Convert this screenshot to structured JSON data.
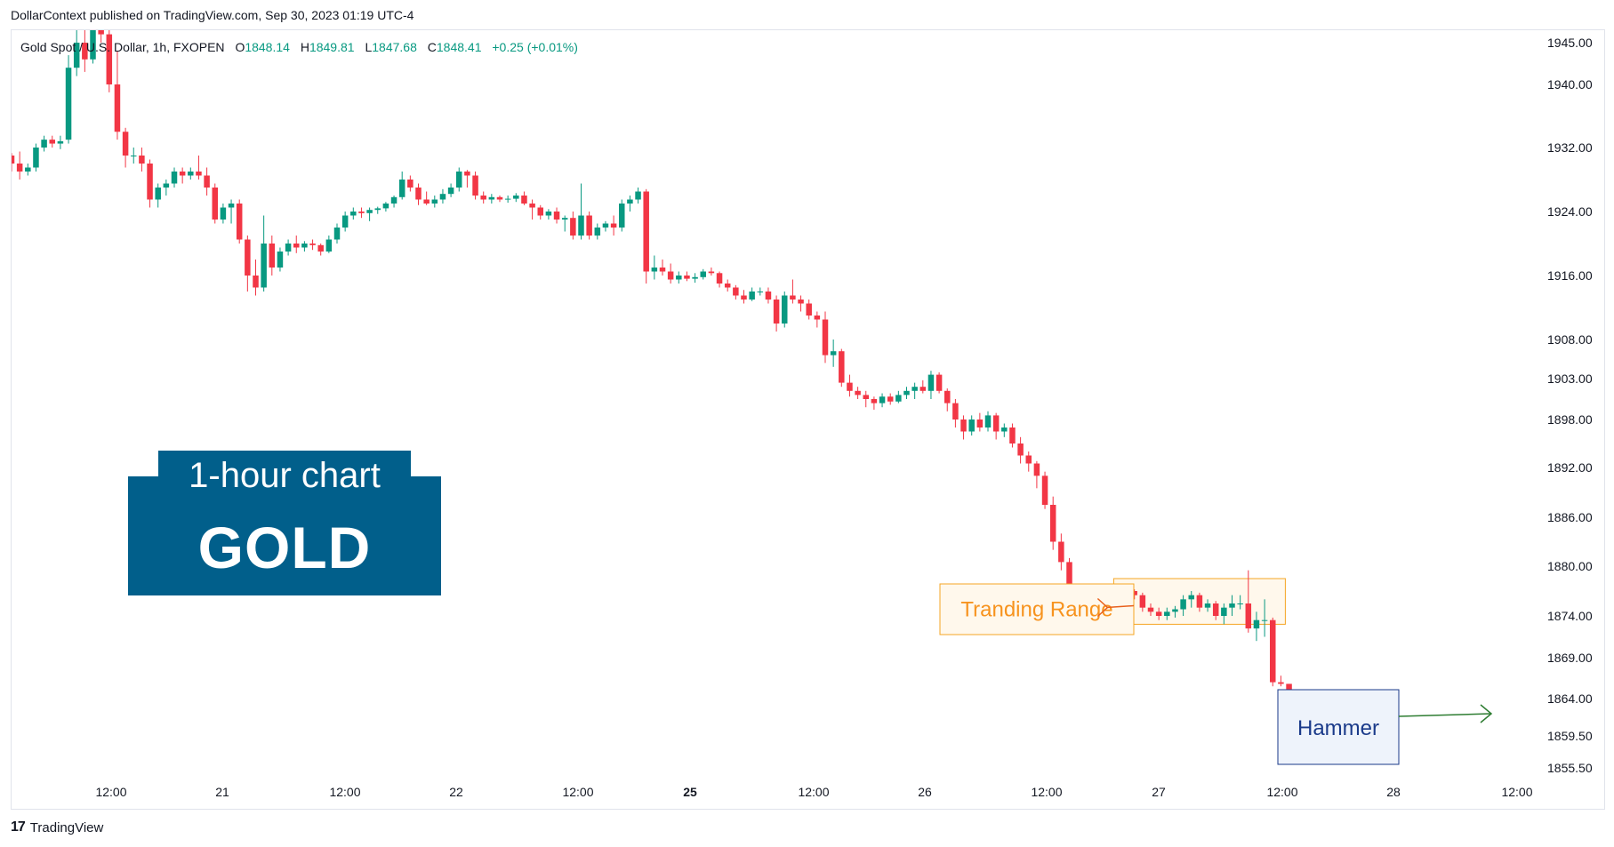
{
  "header": {
    "published_text": "DollarContext published on TradingView.com, Sep 30, 2023 01:19 UTC-4"
  },
  "legend": {
    "symbol": "Gold Spot / U.S. Dollar, 1h, FXOPEN",
    "o_label": "O",
    "o_value": "1848.14",
    "h_label": "H",
    "h_value": "1849.81",
    "l_label": "L",
    "l_value": "1847.68",
    "c_label": "C",
    "c_value": "1848.41",
    "change": "+0.25 (+0.01%)"
  },
  "badge": {
    "subtitle": "1-hour chart",
    "title": "GOLD"
  },
  "footer": {
    "logo_mark": "17",
    "logo_text": "TradingView"
  },
  "colors": {
    "up": "#089981",
    "down": "#f23645",
    "badge": "#015f8b",
    "range_border": "#f5a623",
    "range_fill": "#fff8ec",
    "range_text": "#f7931e",
    "range_arrow": "#e8601c",
    "hammer_border": "#1a3a8a",
    "hammer_fill": "#eef3fb",
    "hammer_text": "#1a3a8a",
    "hammer_arrow": "#2e7d32",
    "axis_text": "#131722"
  },
  "chart_data": {
    "type": "candlestick",
    "y_ticks": [
      "1945.00",
      "1940.00",
      "1932.00",
      "1924.00",
      "1916.00",
      "1908.00",
      "1903.00",
      "1898.00",
      "1892.00",
      "1886.00",
      "1880.00",
      "1874.00",
      "1869.00",
      "1864.00",
      "1859.50",
      "1855.50"
    ],
    "x_ticks": [
      {
        "label": "12:00",
        "bold": false
      },
      {
        "label": "21",
        "bold": false
      },
      {
        "label": "12:00",
        "bold": false
      },
      {
        "label": "22",
        "bold": false
      },
      {
        "label": "12:00",
        "bold": false
      },
      {
        "label": "25",
        "bold": true
      },
      {
        "label": "12:00",
        "bold": false
      },
      {
        "label": "26",
        "bold": false
      },
      {
        "label": "12:00",
        "bold": false
      },
      {
        "label": "27",
        "bold": false
      },
      {
        "label": "12:00",
        "bold": false
      },
      {
        "label": "28",
        "bold": false
      },
      {
        "label": "12:00",
        "bold": false
      }
    ],
    "annotations": {
      "range_label": "Tranding Range",
      "hammer_label": "Hammer"
    },
    "candles": [
      [
        1931.0,
        1931.3,
        1929.0,
        1930.0
      ],
      [
        1930.0,
        1931.5,
        1928.0,
        1929.0
      ],
      [
        1929.0,
        1930.0,
        1928.5,
        1929.5
      ],
      [
        1929.5,
        1932.5,
        1929.0,
        1932.0
      ],
      [
        1932.0,
        1933.5,
        1931.5,
        1933.0
      ],
      [
        1933.0,
        1933.5,
        1932.0,
        1932.5
      ],
      [
        1932.5,
        1933.5,
        1931.8,
        1932.8
      ],
      [
        1933.0,
        1943.5,
        1932.5,
        1942.0
      ],
      [
        1942.0,
        1946.5,
        1941.0,
        1945.0
      ],
      [
        1945.0,
        1946.5,
        1941.5,
        1943.0
      ],
      [
        1943.0,
        1949.5,
        1942.5,
        1948.0
      ],
      [
        1948.0,
        1949.0,
        1945.0,
        1946.0
      ],
      [
        1946.0,
        1947.0,
        1939.0,
        1940.0
      ],
      [
        1940.0,
        1944.0,
        1933.0,
        1934.0
      ],
      [
        1934.0,
        1934.5,
        1929.5,
        1931.0
      ],
      [
        1931.0,
        1932.0,
        1930.0,
        1931.0
      ],
      [
        1931.0,
        1932.0,
        1929.0,
        1930.0
      ],
      [
        1930.0,
        1930.5,
        1924.5,
        1925.5
      ],
      [
        1925.5,
        1927.5,
        1924.5,
        1927.0
      ],
      [
        1927.0,
        1928.0,
        1926.0,
        1927.5
      ],
      [
        1927.5,
        1929.5,
        1927.0,
        1929.0
      ],
      [
        1929.0,
        1929.5,
        1927.5,
        1928.5
      ],
      [
        1928.5,
        1929.5,
        1928.0,
        1929.0
      ],
      [
        1929.0,
        1931.0,
        1928.0,
        1928.5
      ],
      [
        1928.5,
        1929.5,
        1926.0,
        1927.0
      ],
      [
        1927.0,
        1927.5,
        1922.5,
        1923.0
      ],
      [
        1923.0,
        1925.0,
        1922.5,
        1924.5
      ],
      [
        1924.5,
        1925.5,
        1922.5,
        1925.0
      ],
      [
        1925.0,
        1925.5,
        1920.0,
        1920.5
      ],
      [
        1920.5,
        1921.0,
        1914.0,
        1916.0
      ],
      [
        1916.0,
        1918.0,
        1913.5,
        1914.5
      ],
      [
        1914.5,
        1923.5,
        1914.0,
        1920.0
      ],
      [
        1920.0,
        1921.0,
        1916.0,
        1917.0
      ],
      [
        1917.0,
        1919.5,
        1916.5,
        1919.0
      ],
      [
        1919.0,
        1920.5,
        1918.5,
        1920.0
      ],
      [
        1920.0,
        1921.0,
        1918.8,
        1919.5
      ],
      [
        1919.5,
        1920.3,
        1919.0,
        1920.0
      ],
      [
        1920.0,
        1920.5,
        1919.2,
        1919.8
      ],
      [
        1919.8,
        1920.0,
        1918.5,
        1919.0
      ],
      [
        1919.0,
        1921.0,
        1918.8,
        1920.5
      ],
      [
        1920.5,
        1922.5,
        1920.0,
        1922.0
      ],
      [
        1922.0,
        1924.0,
        1921.5,
        1923.5
      ],
      [
        1923.5,
        1924.5,
        1923.0,
        1924.0
      ],
      [
        1924.0,
        1924.5,
        1923.2,
        1923.8
      ],
      [
        1923.8,
        1924.5,
        1922.8,
        1924.2
      ],
      [
        1924.2,
        1924.6,
        1923.7,
        1924.4
      ],
      [
        1924.4,
        1925.2,
        1924.0,
        1925.0
      ],
      [
        1925.0,
        1926.0,
        1924.5,
        1925.8
      ],
      [
        1925.8,
        1929.0,
        1925.5,
        1928.0
      ],
      [
        1928.0,
        1928.5,
        1926.5,
        1927.0
      ],
      [
        1927.0,
        1927.5,
        1924.8,
        1925.5
      ],
      [
        1925.5,
        1926.5,
        1924.8,
        1925.0
      ],
      [
        1925.0,
        1926.0,
        1924.5,
        1925.5
      ],
      [
        1925.5,
        1926.8,
        1925.0,
        1926.2
      ],
      [
        1926.2,
        1927.5,
        1925.8,
        1927.0
      ],
      [
        1927.0,
        1929.5,
        1926.5,
        1929.0
      ],
      [
        1929.0,
        1929.2,
        1927.0,
        1928.5
      ],
      [
        1928.5,
        1929.0,
        1925.5,
        1926.0
      ],
      [
        1926.0,
        1926.5,
        1925.0,
        1925.5
      ],
      [
        1925.5,
        1926.2,
        1925.0,
        1925.8
      ],
      [
        1925.8,
        1926.0,
        1925.2,
        1925.5
      ],
      [
        1925.5,
        1926.0,
        1925.1,
        1925.6
      ],
      [
        1925.6,
        1926.3,
        1925.2,
        1926.0
      ],
      [
        1926.0,
        1926.5,
        1924.8,
        1925.0
      ],
      [
        1925.0,
        1925.5,
        1923.0,
        1924.5
      ],
      [
        1924.5,
        1924.8,
        1923.0,
        1923.5
      ],
      [
        1923.5,
        1924.3,
        1923.0,
        1924.0
      ],
      [
        1924.0,
        1924.5,
        1922.5,
        1923.0
      ],
      [
        1923.0,
        1923.5,
        1921.5,
        1923.2
      ],
      [
        1923.2,
        1924.0,
        1920.5,
        1921.0
      ],
      [
        1921.0,
        1927.5,
        1920.5,
        1923.5
      ],
      [
        1923.5,
        1924.0,
        1920.5,
        1921.0
      ],
      [
        1921.0,
        1922.5,
        1920.5,
        1922.0
      ],
      [
        1922.0,
        1922.8,
        1921.5,
        1922.5
      ],
      [
        1922.5,
        1923.5,
        1921.0,
        1922.0
      ],
      [
        1922.0,
        1925.5,
        1921.5,
        1925.0
      ],
      [
        1925.0,
        1926.0,
        1924.0,
        1925.5
      ],
      [
        1925.5,
        1927.0,
        1925.0,
        1926.5
      ],
      [
        1926.5,
        1926.8,
        1915.0,
        1916.5
      ],
      [
        1916.5,
        1918.5,
        1915.5,
        1917.0
      ],
      [
        1917.0,
        1918.0,
        1916.0,
        1916.5
      ],
      [
        1916.5,
        1917.5,
        1915.0,
        1915.5
      ],
      [
        1915.5,
        1916.5,
        1915.0,
        1916.0
      ],
      [
        1916.0,
        1916.5,
        1915.3,
        1915.6
      ],
      [
        1915.6,
        1916.3,
        1915.1,
        1915.8
      ],
      [
        1915.8,
        1916.8,
        1915.5,
        1916.5
      ],
      [
        1916.5,
        1917.0,
        1916.0,
        1916.3
      ],
      [
        1916.3,
        1916.5,
        1914.5,
        1915.0
      ],
      [
        1915.0,
        1915.5,
        1914.0,
        1914.5
      ],
      [
        1914.5,
        1914.8,
        1913.0,
        1913.5
      ],
      [
        1913.5,
        1914.2,
        1912.5,
        1913.0
      ],
      [
        1913.0,
        1914.5,
        1912.8,
        1914.0
      ],
      [
        1914.0,
        1914.5,
        1913.5,
        1914.0
      ],
      [
        1914.0,
        1914.5,
        1912.5,
        1913.0
      ],
      [
        1913.0,
        1913.5,
        1909.0,
        1910.0
      ],
      [
        1910.0,
        1914.0,
        1909.5,
        1913.5
      ],
      [
        1913.5,
        1915.5,
        1912.5,
        1913.0
      ],
      [
        1913.0,
        1913.5,
        1911.5,
        1912.5
      ],
      [
        1912.5,
        1913.0,
        1910.5,
        1911.0
      ],
      [
        1911.0,
        1911.5,
        1909.5,
        1910.5
      ],
      [
        1910.5,
        1911.5,
        1905.0,
        1906.0
      ],
      [
        1906.0,
        1908.0,
        1904.5,
        1906.5
      ],
      [
        1906.5,
        1906.8,
        1902.0,
        1902.5
      ],
      [
        1902.5,
        1903.5,
        1900.8,
        1901.5
      ],
      [
        1901.5,
        1902.0,
        1900.5,
        1901.0
      ],
      [
        1901.0,
        1901.5,
        1899.5,
        1900.5
      ],
      [
        1900.5,
        1900.8,
        1899.2,
        1900.0
      ],
      [
        1900.0,
        1901.2,
        1899.5,
        1900.8
      ],
      [
        1900.8,
        1901.2,
        1899.8,
        1900.2
      ],
      [
        1900.2,
        1901.5,
        1900.0,
        1901.0
      ],
      [
        1901.0,
        1902.0,
        1900.5,
        1901.5
      ],
      [
        1901.5,
        1902.5,
        1900.5,
        1902.0
      ],
      [
        1902.0,
        1902.8,
        1901.2,
        1901.5
      ],
      [
        1901.5,
        1904.0,
        1900.5,
        1903.5
      ],
      [
        1903.5,
        1903.8,
        1901.2,
        1901.5
      ],
      [
        1901.5,
        1901.8,
        1899.0,
        1900.0
      ],
      [
        1900.0,
        1900.5,
        1897.0,
        1898.0
      ],
      [
        1898.0,
        1898.5,
        1895.5,
        1896.5
      ],
      [
        1896.5,
        1898.5,
        1896.0,
        1898.0
      ],
      [
        1898.0,
        1898.8,
        1896.5,
        1897.0
      ],
      [
        1897.0,
        1899.0,
        1896.5,
        1898.5
      ],
      [
        1898.5,
        1898.8,
        1895.5,
        1896.5
      ],
      [
        1896.5,
        1897.5,
        1895.8,
        1897.0
      ],
      [
        1897.0,
        1897.5,
        1894.5,
        1895.0
      ],
      [
        1895.0,
        1895.8,
        1892.5,
        1893.5
      ],
      [
        1893.5,
        1894.0,
        1891.5,
        1892.5
      ],
      [
        1892.5,
        1892.8,
        1889.5,
        1891.0
      ],
      [
        1891.0,
        1891.5,
        1887.0,
        1887.5
      ],
      [
        1887.5,
        1888.5,
        1882.0,
        1883.0
      ],
      [
        1883.0,
        1884.0,
        1879.5,
        1880.5
      ],
      [
        1880.5,
        1881.0,
        1876.0,
        1876.5
      ],
      [
        1876.5,
        1876.8,
        1875.0,
        1875.5
      ],
      [
        1875.5,
        1877.5,
        1874.0,
        1877.0
      ],
      [
        1877.0,
        1877.5,
        1874.5,
        1875.5
      ],
      [
        1875.5,
        1877.5,
        1875.0,
        1877.0
      ],
      [
        1877.0,
        1877.5,
        1876.0,
        1876.5
      ],
      [
        1876.5,
        1877.5,
        1876.0,
        1877.0
      ],
      [
        1877.0,
        1877.5,
        1876.5,
        1877.0
      ],
      [
        1877.0,
        1877.2,
        1876.0,
        1876.5
      ],
      [
        1876.5,
        1876.8,
        1874.5,
        1875.0
      ],
      [
        1875.0,
        1875.5,
        1874.0,
        1874.5
      ],
      [
        1874.5,
        1875.0,
        1873.5,
        1874.0
      ],
      [
        1874.0,
        1875.0,
        1873.5,
        1874.5
      ],
      [
        1874.5,
        1875.2,
        1873.8,
        1874.8
      ],
      [
        1874.8,
        1876.5,
        1874.0,
        1876.0
      ],
      [
        1876.0,
        1877.0,
        1875.0,
        1876.5
      ],
      [
        1876.5,
        1876.8,
        1874.5,
        1875.0
      ],
      [
        1875.0,
        1876.0,
        1874.5,
        1875.5
      ],
      [
        1875.5,
        1875.8,
        1873.5,
        1874.0
      ],
      [
        1874.0,
        1875.5,
        1873.0,
        1875.0
      ],
      [
        1875.0,
        1876.5,
        1874.0,
        1875.5
      ],
      [
        1875.5,
        1876.5,
        1874.8,
        1875.5
      ],
      [
        1875.5,
        1879.5,
        1872.0,
        1872.5
      ],
      [
        1872.5,
        1874.5,
        1871.0,
        1873.5
      ],
      [
        1873.5,
        1876.0,
        1871.5,
        1873.5
      ],
      [
        1873.5,
        1873.8,
        1865.5,
        1866.0
      ],
      [
        1866.0,
        1866.8,
        1865.5,
        1865.8
      ],
      [
        1865.8,
        1865.8,
        1863.0,
        1864.5
      ],
      [
        1864.5,
        1864.6,
        1861.5,
        1863.0
      ]
    ]
  }
}
